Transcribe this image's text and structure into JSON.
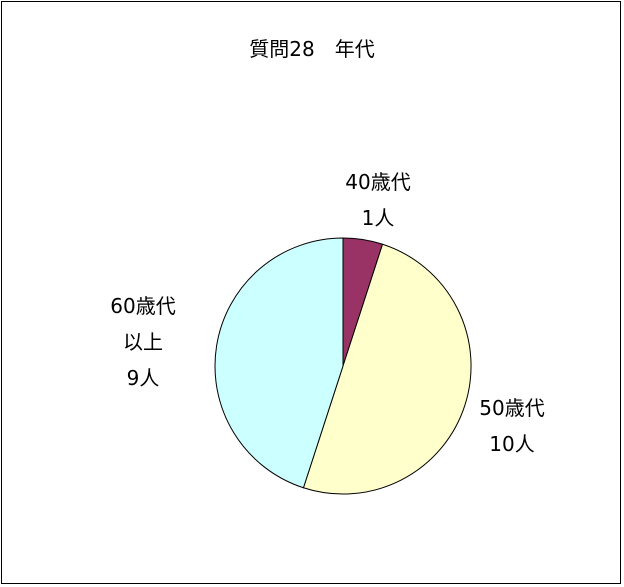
{
  "chart_data": {
    "type": "pie",
    "title": "質問28　年代",
    "categories": [
      "40歳代",
      "50歳代",
      "60歳代以上"
    ],
    "values": [
      1,
      10,
      9
    ],
    "value_labels": [
      "1人",
      "10人",
      "9人"
    ],
    "colors": [
      "#993366",
      "#FFFFCC",
      "#CCFFFF"
    ]
  }
}
